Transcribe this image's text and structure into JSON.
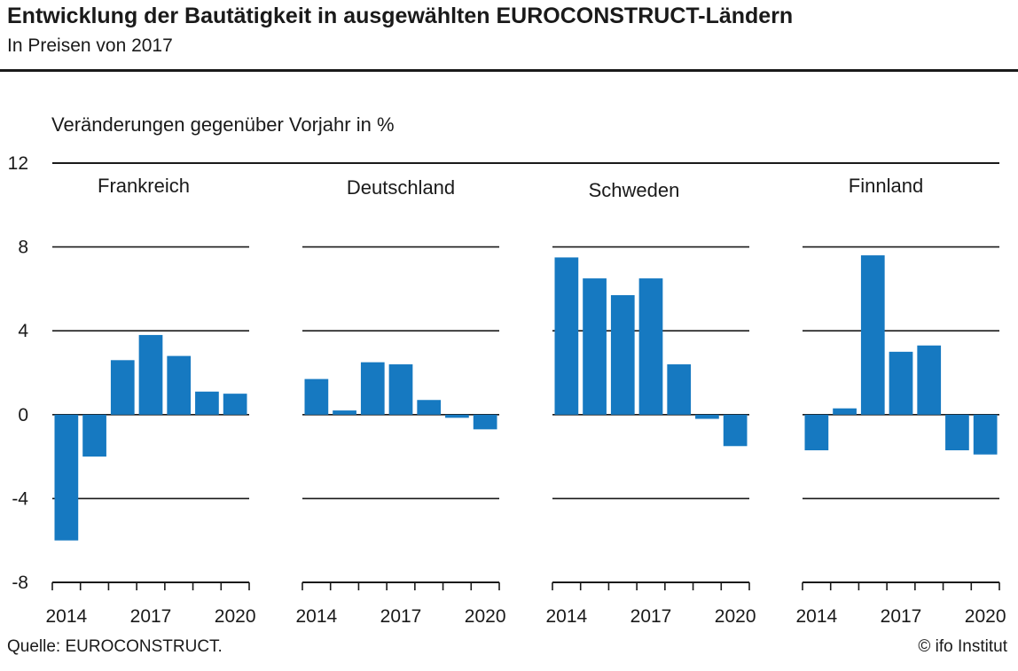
{
  "header": {
    "title": "Entwicklung der Bautätigkeit in ausgewählten EUROCONSTRUCT-Ländern",
    "subtitle": "In Preisen von 2017"
  },
  "footer": {
    "source": "Quelle: EUROCONSTRUCT.",
    "copyright": "© ifo Institut"
  },
  "colors": {
    "bar": "#1679c1",
    "grid": "#1a1a1a"
  },
  "chart_data": {
    "type": "bar",
    "ylabel": "Veränderungen gegenüber Vorjahr in %",
    "ylim": [
      -8,
      12
    ],
    "yticks": [
      12,
      8,
      4,
      0,
      -4,
      -8
    ],
    "ytick_labels": [
      "12",
      "8",
      "4",
      "0",
      "-4",
      "-8"
    ],
    "grid": true,
    "categories": [
      "2014",
      "2015",
      "2016",
      "2017",
      "2018",
      "2019",
      "2020"
    ],
    "xtick_labels": [
      "2014",
      "2017",
      "2020"
    ],
    "series": [
      {
        "name": "Frankreich",
        "values": [
          -6.0,
          -2.0,
          2.6,
          3.8,
          2.8,
          1.1,
          1.0
        ]
      },
      {
        "name": "Deutschland",
        "values": [
          1.7,
          0.2,
          2.5,
          2.4,
          0.7,
          -0.15,
          -0.7
        ]
      },
      {
        "name": "Schweden",
        "values": [
          7.5,
          6.5,
          5.7,
          6.5,
          2.4,
          -0.2,
          -1.5
        ]
      },
      {
        "name": "Finnland",
        "values": [
          -1.7,
          0.3,
          7.6,
          3.0,
          3.3,
          -1.7,
          -1.9
        ]
      }
    ]
  }
}
